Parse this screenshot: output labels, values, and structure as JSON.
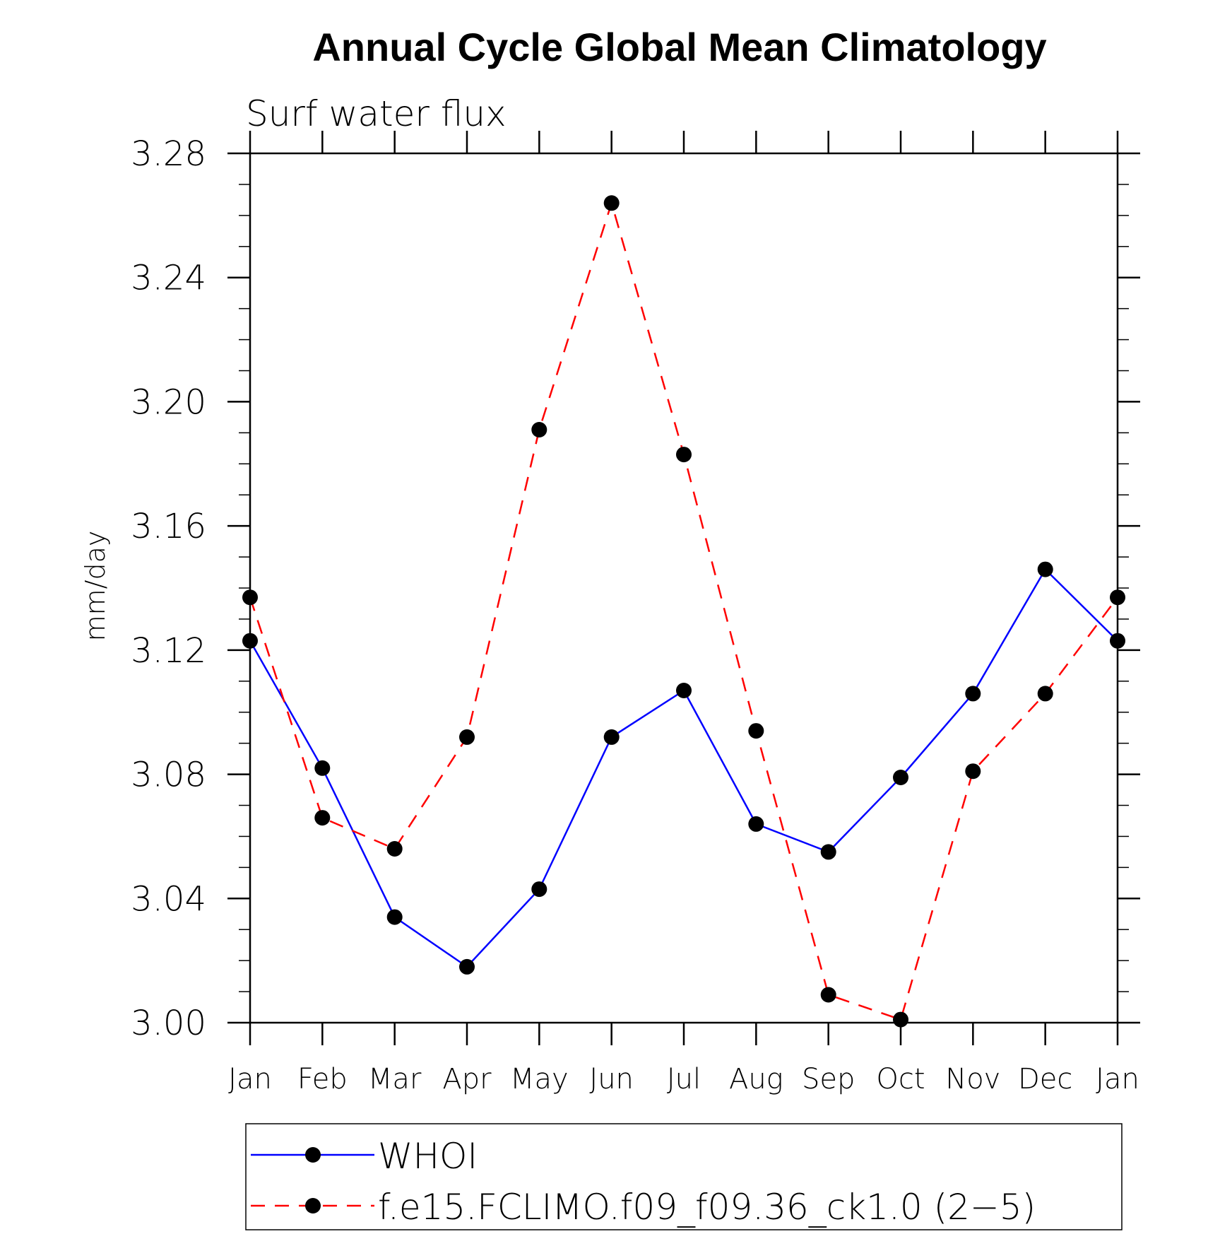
{
  "chart_data": {
    "type": "line",
    "title": "Annual Cycle Global Mean Climatology",
    "subtitle": "Surf water flux",
    "xlabel": "",
    "ylabel": "mm/day",
    "categories": [
      "Jan",
      "Feb",
      "Mar",
      "Apr",
      "May",
      "Jun",
      "Jul",
      "Aug",
      "Sep",
      "Oct",
      "Nov",
      "Dec",
      "Jan"
    ],
    "ylim": [
      3.0,
      3.28
    ],
    "yticks": [
      "3.00",
      "3.04",
      "3.08",
      "3.12",
      "3.16",
      "3.20",
      "3.24",
      "3.28"
    ],
    "grid": false,
    "legend_position": "bottom",
    "series": [
      {
        "name": "WHOI",
        "color": "#0000ff",
        "line_style": "solid",
        "marker": "filled-circle",
        "values": [
          3.123,
          3.082,
          3.034,
          3.018,
          3.043,
          3.092,
          3.107,
          3.064,
          3.055,
          3.079,
          3.106,
          3.146,
          3.123
        ]
      },
      {
        "name": "f.e15.FCLIMO.f09_f09.36_ck1.0 (2−5)",
        "color": "#ff0000",
        "line_style": "dashed",
        "marker": "filled-circle",
        "values": [
          3.137,
          3.066,
          3.056,
          3.092,
          3.191,
          3.264,
          3.183,
          3.094,
          3.009,
          3.001,
          3.081,
          3.106,
          3.137
        ]
      }
    ]
  }
}
